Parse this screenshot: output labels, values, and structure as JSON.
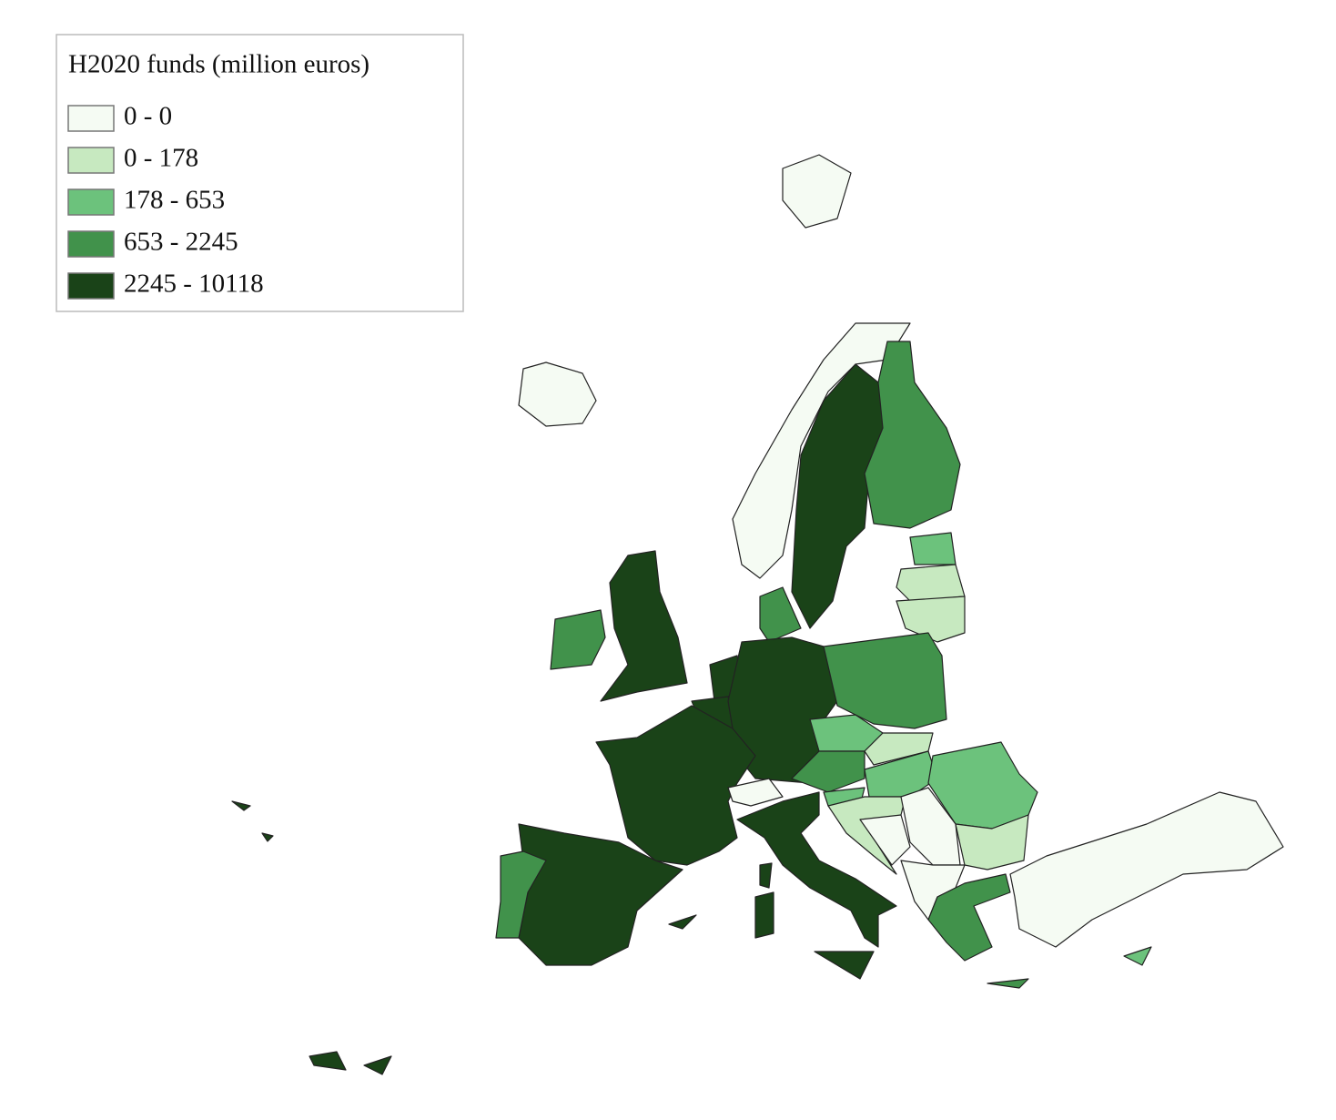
{
  "legend": {
    "title": "H2020 funds (million euros)",
    "items": [
      {
        "label": "0 - 0",
        "color": "#f5fbf3"
      },
      {
        "label": "0 - 178",
        "color": "#c7e9c0"
      },
      {
        "label": "178 - 653",
        "color": "#6cc27c"
      },
      {
        "label": "653 - 2245",
        "color": "#41924b"
      },
      {
        "label": "2245 - 10118",
        "color": "#1a4318"
      }
    ]
  }
}
